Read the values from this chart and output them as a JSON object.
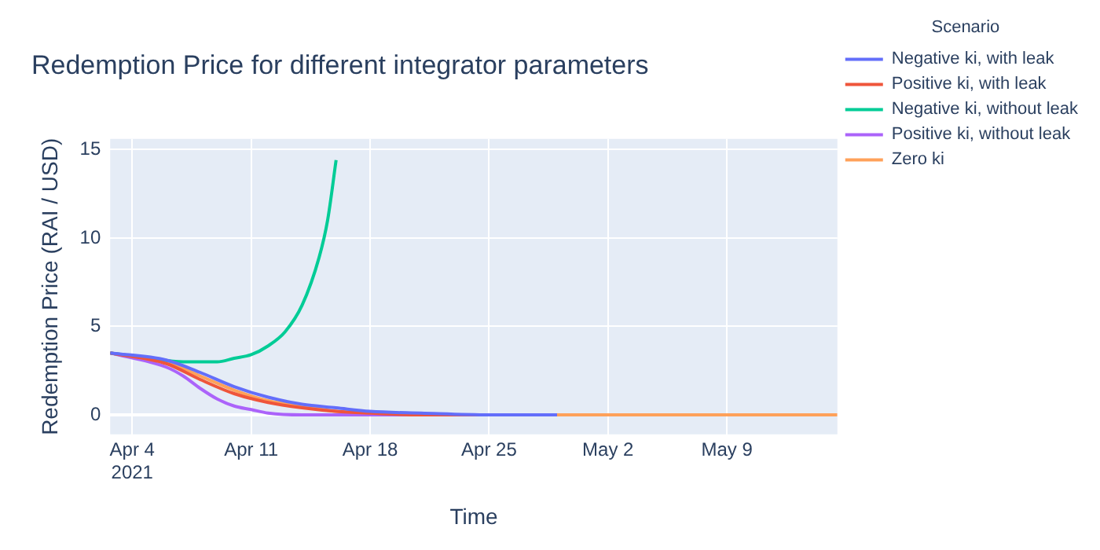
{
  "chart_data": {
    "type": "line",
    "title": "Redemption Price for different integrator parameters",
    "xlabel": "Time",
    "ylabel": "Redemption Price (RAI / USD)",
    "legend_title": "Scenario",
    "legend": "top right",
    "grid": true,
    "marker": "none",
    "line_style": "solid",
    "xlim": [
      "2021-04-02T17:00",
      "2021-05-15T12:00"
    ],
    "xticks": [
      {
        "value": "2021-04-04",
        "label": "Apr 4\n2021"
      },
      {
        "value": "2021-04-11",
        "label": "Apr 11"
      },
      {
        "value": "2021-04-18",
        "label": "Apr 18"
      },
      {
        "value": "2021-04-25",
        "label": "Apr 25"
      },
      {
        "value": "2021-05-02",
        "label": "May 2"
      },
      {
        "value": "2021-05-09",
        "label": "May 9"
      }
    ],
    "ylim": [
      -1.1,
      15.6
    ],
    "yticks": [
      0,
      5,
      10,
      15
    ],
    "series": [
      {
        "name": "Negative ki, with leak",
        "color": "#636efa",
        "x": [
          "2021-04-02T17:00",
          "2021-04-06",
          "2021-04-08",
          "2021-04-10",
          "2021-04-12",
          "2021-04-14",
          "2021-04-16",
          "2021-04-18",
          "2021-04-21",
          "2021-04-25",
          "2021-04-29"
        ],
        "values": [
          3.5,
          3.1,
          2.4,
          1.6,
          1.0,
          0.6,
          0.4,
          0.2,
          0.1,
          0,
          0
        ]
      },
      {
        "name": "Positive ki, with leak",
        "color": "#ef553b",
        "x": [
          "2021-04-02T17:00",
          "2021-04-06",
          "2021-04-08",
          "2021-04-10",
          "2021-04-12",
          "2021-04-14",
          "2021-04-16",
          "2021-04-18",
          "2021-04-21",
          "2021-04-29"
        ],
        "values": [
          3.5,
          2.9,
          2.0,
          1.2,
          0.7,
          0.4,
          0.2,
          0.1,
          0,
          0
        ]
      },
      {
        "name": "Negative ki, without leak",
        "color": "#00cc96",
        "x": [
          "2021-04-02T17:00",
          "2021-04-05",
          "2021-04-07",
          "2021-04-09",
          "2021-04-10",
          "2021-04-11",
          "2021-04-12",
          "2021-04-13",
          "2021-04-14",
          "2021-04-15",
          "2021-04-15T12:00",
          "2021-04-16"
        ],
        "values": [
          3.5,
          3.2,
          3.0,
          3.0,
          3.2,
          3.4,
          3.9,
          4.7,
          6.2,
          8.9,
          11,
          14.4
        ]
      },
      {
        "name": "Positive ki, without leak",
        "color": "#ab63fa",
        "x": [
          "2021-04-02T17:00",
          "2021-04-06",
          "2021-04-07",
          "2021-04-08",
          "2021-04-09",
          "2021-04-10",
          "2021-04-11",
          "2021-04-12",
          "2021-04-14",
          "2021-04-18",
          "2021-04-29"
        ],
        "values": [
          3.5,
          2.7,
          2.2,
          1.5,
          0.9,
          0.5,
          0.3,
          0.1,
          0,
          0,
          0
        ]
      },
      {
        "name": "Zero ki",
        "color": "#ffa15a",
        "x": [
          "2021-04-02T17:00",
          "2021-04-06",
          "2021-04-08",
          "2021-04-10",
          "2021-04-12",
          "2021-04-14",
          "2021-04-16",
          "2021-04-18",
          "2021-04-21",
          "2021-04-25",
          "2021-05-15T12:00"
        ],
        "values": [
          3.5,
          3.0,
          2.2,
          1.4,
          0.8,
          0.5,
          0.2,
          0.1,
          0,
          0,
          0
        ]
      }
    ]
  }
}
